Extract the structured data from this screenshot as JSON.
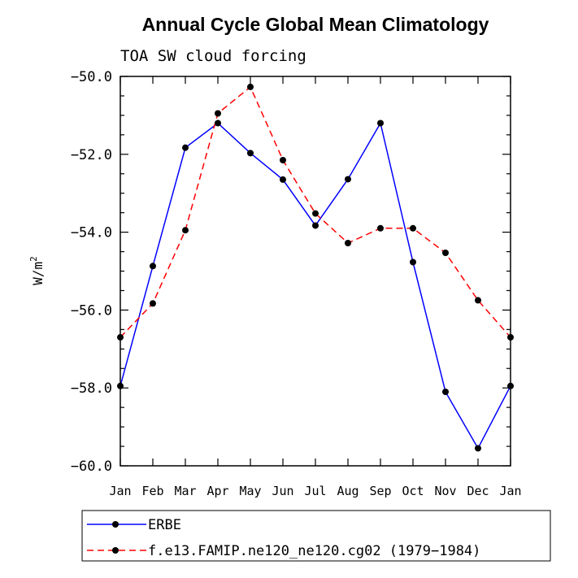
{
  "chart_data": {
    "type": "line",
    "title": "Annual Cycle Global Mean Climatology",
    "subtitle": "TOA SW cloud forcing",
    "ylabel": "W/m",
    "ylabel_superscript": "2",
    "xlabel": "",
    "ylim": [
      -60.0,
      -50.0
    ],
    "yticks": [
      -50.0,
      -52.0,
      -54.0,
      -56.0,
      -58.0,
      -60.0
    ],
    "ytick_labels": [
      "−50.0",
      "−52.0",
      "−54.0",
      "−56.0",
      "−58.0",
      "−60.0"
    ],
    "categories": [
      "Jan",
      "Feb",
      "Mar",
      "Apr",
      "May",
      "Jun",
      "Jul",
      "Aug",
      "Sep",
      "Oct",
      "Nov",
      "Dec",
      "Jan"
    ],
    "series": [
      {
        "name": "ERBE",
        "color": "#0000ff",
        "dash": "solid",
        "values": [
          -57.95,
          -54.87,
          -51.83,
          -51.2,
          -51.97,
          -52.65,
          -53.83,
          -52.64,
          -51.2,
          -54.77,
          -58.1,
          -59.55,
          -57.95
        ]
      },
      {
        "name": "f.e13.FAMIP.ne120_ne120.cg02 (1979−1984)",
        "color": "#ff0000",
        "dash": "dashed",
        "values": [
          -56.7,
          -55.83,
          -53.95,
          -50.95,
          -50.27,
          -52.15,
          -53.52,
          -54.28,
          -53.9,
          -53.9,
          -54.53,
          -55.75,
          -56.7
        ]
      }
    ],
    "legend_placement": "bottom"
  }
}
